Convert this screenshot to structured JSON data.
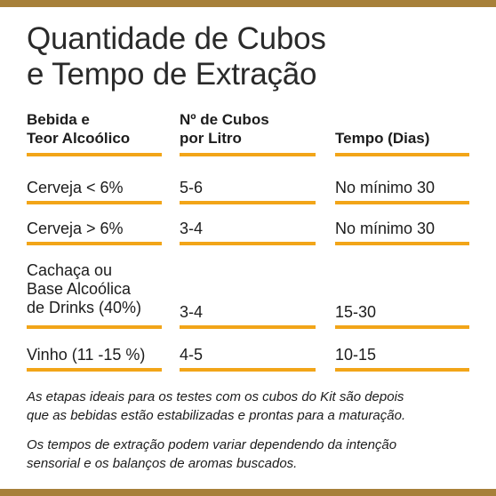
{
  "title": {
    "line1": "Quantidade de Cubos",
    "line2": "e Tempo de Extração"
  },
  "columns": [
    {
      "line1": "Bebida e",
      "line2": "Teor Alcoólico"
    },
    {
      "line1": "Nº de Cubos",
      "line2": "por Litro"
    },
    {
      "line1": "Tempo (Dias)"
    }
  ],
  "rows": [
    {
      "bebida": "Cerveja < 6%",
      "cubos": "5-6",
      "tempo": "No mínimo 30"
    },
    {
      "bebida": "Cerveja > 6%",
      "cubos": "3-4",
      "tempo": "No mínimo 30"
    },
    {
      "bebida_lines": [
        "Cachaça ou",
        "Base Alcoólica",
        "de Drinks (40%)"
      ],
      "cubos": "3-4",
      "tempo": "15-30"
    },
    {
      "bebida": "Vinho (11 -15 %)",
      "cubos": "4-5",
      "tempo": "10-15"
    }
  ],
  "notes": [
    {
      "line1": "As etapas ideais para os testes com os cubos do Kit são depois",
      "line2": "que as bebidas estão estabilizadas e prontas para a maturação."
    },
    {
      "line1": "Os tempos de extração podem variar dependendo da intenção",
      "line2": "sensorial e os balanços de aromas buscados."
    }
  ],
  "colors": {
    "accent": "#f2a518",
    "frame": "#a7803a",
    "text": "#1c1c1c"
  }
}
